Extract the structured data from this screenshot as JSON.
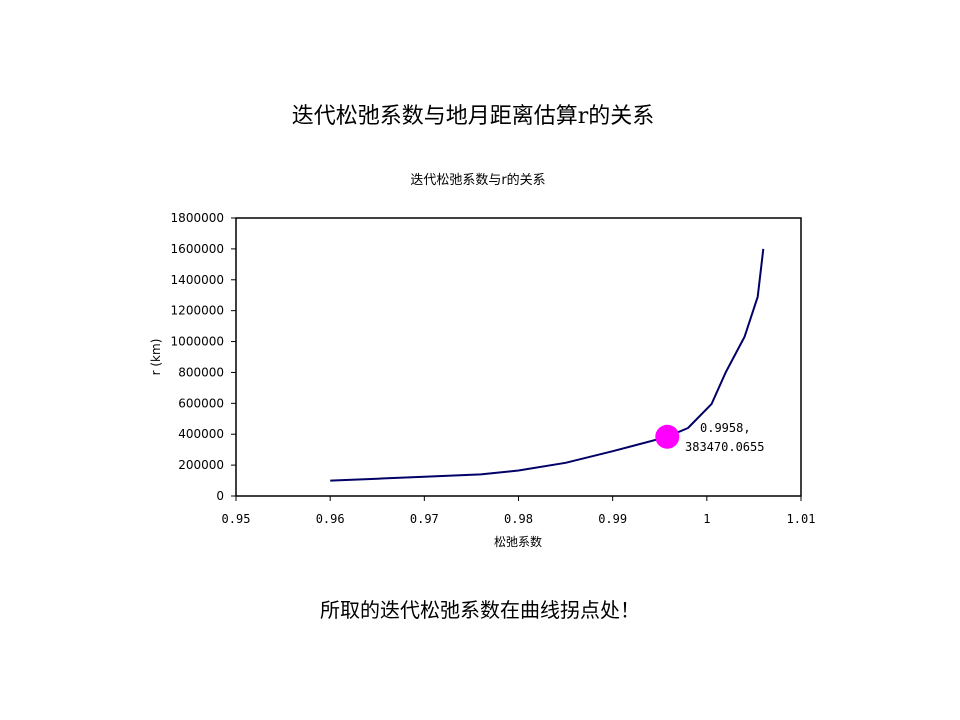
{
  "slide": {
    "title": "迭代松弛系数与地月距离估算r的关系",
    "footer": "所取的迭代松弛系数在曲线拐点处！"
  },
  "chart_data": {
    "type": "line",
    "title": "迭代松弛系数与r的关系",
    "xlabel": "松弛系数",
    "ylabel": "r (km)",
    "xlim": [
      0.95,
      1.01
    ],
    "ylim": [
      0,
      1800000
    ],
    "x_ticks": [
      "0.95",
      "0.96",
      "0.97",
      "0.98",
      "0.99",
      "1",
      "1.01"
    ],
    "y_ticks": [
      "0",
      "200000",
      "400000",
      "600000",
      "800000",
      "1000000",
      "1200000",
      "1400000",
      "1600000",
      "1800000"
    ],
    "grid": false,
    "series": [
      {
        "color": "#000066",
        "points": [
          [
            0.96,
            100000
          ],
          [
            0.965,
            112000
          ],
          [
            0.97,
            125000
          ],
          [
            0.976,
            140000
          ],
          [
            0.98,
            165000
          ],
          [
            0.985,
            215000
          ],
          [
            0.99,
            290000
          ],
          [
            0.9958,
            383470.0655
          ],
          [
            0.998,
            440000
          ],
          [
            1.0005,
            595000
          ],
          [
            1.002,
            800000
          ],
          [
            1.004,
            1030000
          ],
          [
            1.0054,
            1290000
          ],
          [
            1.006,
            1600000
          ]
        ]
      }
    ],
    "highlight": {
      "x": 0.9958,
      "y": 383470.0655,
      "label_line1": "0.9958,",
      "label_line2": "383470.0655",
      "color": "#ff00ff"
    }
  }
}
